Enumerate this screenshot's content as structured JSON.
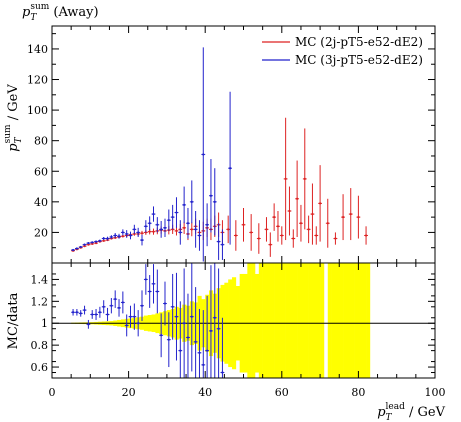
{
  "chart_data": [
    {
      "type": "scatter",
      "title": "p_T^sum (Away)",
      "title_parts": {
        "main": "p",
        "sub": "T",
        "sup": "sum",
        "tail": " (Away)"
      },
      "ylabel_parts": {
        "main": "p",
        "sub": "T",
        "sup": "sum",
        "tail": " / GeV"
      },
      "xlim": [
        0,
        100
      ],
      "ylim": [
        0,
        155
      ],
      "x_ticks": [
        0,
        20,
        40,
        60,
        80,
        100
      ],
      "y_ticks": [
        20,
        40,
        60,
        80,
        100,
        120,
        140
      ],
      "y_tick_labels": [
        "20",
        "40",
        "60",
        "80",
        "100",
        "120",
        "140"
      ],
      "legend_position": "top-right",
      "colors": {
        "red": "#dd2222",
        "blue": "#2222cc"
      },
      "series": [
        {
          "name": "MC (2j-pT5-e52-dE2)",
          "color": "#dd2222",
          "x": [
            5.5,
            6.5,
            7.5,
            8.5,
            9.5,
            10.5,
            11.5,
            12.5,
            13.5,
            14.5,
            15.5,
            16.5,
            17.5,
            18.5,
            19.5,
            20.5,
            21.5,
            22.5,
            23.5,
            24.5,
            25.5,
            26.5,
            27.5,
            28.5,
            29.5,
            30.5,
            31.5,
            32.5,
            33.5,
            34.5,
            35.5,
            36.5,
            37.5,
            38.5,
            39.5,
            40.5,
            41.5,
            42.5,
            43.5,
            44.5,
            46,
            48,
            50,
            52,
            54,
            56,
            57,
            58,
            59,
            60,
            61,
            62,
            63,
            64,
            65,
            66,
            67,
            68,
            69,
            70,
            72,
            74,
            76,
            78,
            80,
            82
          ],
          "y": [
            8,
            9,
            10,
            11,
            12,
            12.5,
            13,
            14,
            14.5,
            15,
            16,
            16.5,
            17,
            17.5,
            18,
            18.5,
            19,
            19,
            19.5,
            20,
            20.5,
            20.5,
            21,
            21.5,
            21,
            21.5,
            22,
            21,
            22,
            23,
            19,
            22,
            24,
            20,
            21,
            23,
            22,
            24,
            25,
            20,
            22,
            18,
            25,
            20,
            16,
            22,
            12,
            30,
            24,
            18,
            55,
            34,
            16,
            42,
            26,
            55,
            22,
            32,
            18,
            39,
            26,
            16,
            30,
            32,
            30,
            18
          ],
          "err": [
            0.3,
            0.3,
            0.3,
            0.4,
            0.4,
            0.4,
            0.5,
            0.5,
            0.5,
            0.6,
            0.6,
            0.7,
            0.8,
            0.8,
            1,
            1,
            1.2,
            1.3,
            1.5,
            1.6,
            1.8,
            2,
            2.2,
            2.4,
            2.5,
            2.8,
            3,
            3,
            3.5,
            4,
            4,
            4.5,
            5,
            5,
            6,
            6,
            7,
            7,
            8,
            8,
            9,
            10,
            11,
            12,
            10,
            8,
            8,
            9,
            10,
            6,
            40,
            16,
            6,
            25,
            12,
            33,
            9,
            20,
            6,
            25,
            16,
            4,
            15,
            17,
            14,
            6
          ]
        },
        {
          "name": "MC (3j-pT5-e52-dE2)",
          "color": "#2222cc",
          "x": [
            5.5,
            6.5,
            7.5,
            8.5,
            9.5,
            10.5,
            11.5,
            12.5,
            13.5,
            14.5,
            15.5,
            16.5,
            17.5,
            18.5,
            19.5,
            20.5,
            21.5,
            22.5,
            23.5,
            24.5,
            25.5,
            26.5,
            27.5,
            28.5,
            29.5,
            30.5,
            31.5,
            32.5,
            33.5,
            34.5,
            35.5,
            36.5,
            37.5,
            38.5,
            39.5,
            40.5,
            41.5,
            42.5,
            43.5,
            44.5,
            46.5
          ],
          "y": [
            8.5,
            9.5,
            10.5,
            12,
            13,
            13.5,
            14,
            14.5,
            16,
            16,
            17,
            18,
            17.5,
            20,
            19,
            18,
            22,
            20,
            15,
            24,
            26,
            32,
            25,
            22,
            23,
            28,
            30,
            33,
            20,
            38,
            26,
            40,
            22,
            18,
            71,
            25,
            44,
            40,
            14,
            12,
            62
          ],
          "err": [
            0.5,
            0.5,
            0.5,
            0.6,
            0.6,
            0.6,
            0.7,
            0.8,
            1,
            1.2,
            1.2,
            1.6,
            1.6,
            2,
            2.5,
            2.5,
            3,
            3,
            3.5,
            4,
            4.5,
            5,
            5,
            5.5,
            6,
            7,
            8,
            10,
            8,
            12,
            10,
            14,
            12,
            10,
            70,
            14,
            24,
            22,
            12,
            10,
            50
          ]
        }
      ]
    },
    {
      "type": "scatter",
      "ylabel": "MC/data",
      "xlabel_parts": {
        "main": "p",
        "sub": "T",
        "sup": "lead",
        "tail": " / GeV"
      },
      "xlim": [
        0,
        100
      ],
      "ylim": [
        0.5,
        1.55
      ],
      "x_ticks": [
        0,
        20,
        40,
        60,
        80,
        100
      ],
      "x_tick_labels": [
        "0",
        "20",
        "40",
        "60",
        "80",
        "100"
      ],
      "y_ticks": [
        0.6,
        0.8,
        1.0,
        1.2,
        1.4
      ],
      "y_tick_labels": [
        "0.6",
        "0.8",
        "1",
        "1.2",
        "1.4"
      ],
      "reference_line": 1.0,
      "band_color": "#ffff00",
      "band": {
        "x": [
          5.5,
          6.5,
          7.5,
          8.5,
          9.5,
          10.5,
          11.5,
          12.5,
          13.5,
          14.5,
          15.5,
          16.5,
          17.5,
          18.5,
          19.5,
          20.5,
          21.5,
          22.5,
          23.5,
          24.5,
          25.5,
          26.5,
          27.5,
          28.5,
          29.5,
          30.5,
          31.5,
          32.5,
          33.5,
          34.5,
          35.5,
          36.5,
          37.5,
          38.5,
          39.5,
          40.5,
          41.5,
          42.5,
          43.5,
          44.5,
          45.5,
          46.5,
          47.5,
          48.5,
          49.5,
          50.5,
          51.5,
          52.5,
          53.5,
          54.5,
          55.5,
          56.5,
          57.5,
          58.5,
          59.5,
          60.5,
          61.5,
          62.5,
          63.5,
          64.5,
          65.5,
          66.5,
          67.5,
          68.5,
          69.5,
          70.5,
          71.5,
          72.5,
          73.5,
          74.5,
          75.5,
          76.5,
          77.5,
          78.5,
          79.5,
          80.5,
          81.5,
          82.5
        ],
        "half_width": [
          0.005,
          0.006,
          0.007,
          0.008,
          0.009,
          0.01,
          0.012,
          0.014,
          0.016,
          0.018,
          0.02,
          0.025,
          0.03,
          0.035,
          0.04,
          0.045,
          0.05,
          0.055,
          0.06,
          0.07,
          0.075,
          0.08,
          0.09,
          0.1,
          0.11,
          0.12,
          0.13,
          0.15,
          0.14,
          0.17,
          0.16,
          0.2,
          0.19,
          0.25,
          0.22,
          0.26,
          0.3,
          0.27,
          0.32,
          0.35,
          0.37,
          0.4,
          0.42,
          0.34,
          0.45,
          0.45,
          0.6,
          0.6,
          0.45,
          0.6,
          0.6,
          0.6,
          0.6,
          0.6,
          0.6,
          0.6,
          0.6,
          0.6,
          0.6,
          0.6,
          0.6,
          0.6,
          0.6,
          0.6,
          0.6,
          0.6,
          0.6,
          0.6,
          0.6,
          0.6,
          0.6,
          0.6,
          0.6,
          0.6,
          0.6,
          0.6,
          0.6,
          0.6
        ],
        "gaps": [
          [
            67.5,
            68.5
          ],
          [
            70.5,
            72.5
          ],
          [
            74.5,
            75.5
          ],
          [
            76.5,
            77.5
          ],
          [
            79.5,
            80.5
          ]
        ]
      },
      "series": [
        {
          "name": "MC (3j-pT5-e52-dE2) / data",
          "color": "#2222cc",
          "x": [
            5.5,
            6.5,
            7.5,
            8.5,
            9.5,
            10.5,
            11.5,
            12.5,
            13.5,
            14.5,
            15.5,
            16.5,
            17.5,
            18.5,
            19.5,
            20.5,
            21.5,
            22.5,
            23.5,
            24.5,
            25.5,
            26.5,
            27.5,
            28.5,
            29.5,
            30.5,
            31.5,
            32.5,
            33.5,
            34.5,
            35.5,
            36.5,
            37.5,
            38.5,
            39.5,
            40.5,
            41.5,
            42.5,
            43.5,
            44.5
          ],
          "y": [
            1.1,
            1.1,
            1.09,
            1.12,
            0.99,
            1.08,
            1.08,
            1.1,
            1.15,
            1.08,
            1.16,
            1.22,
            1.14,
            1.19,
            0.98,
            1.06,
            1.06,
            1.0,
            1.16,
            1.4,
            1.29,
            1.36,
            1.29,
            0.89,
            1.18,
            0.85,
            1.15,
            1.06,
            0.75,
            1.0,
            0.87,
            1.06,
            0.83,
            0.73,
            0.62,
            0.75,
            0.93,
            1.05,
            0.95,
            0.55
          ],
          "err": [
            0.03,
            0.03,
            0.03,
            0.04,
            0.04,
            0.04,
            0.05,
            0.05,
            0.06,
            0.06,
            0.07,
            0.08,
            0.08,
            0.1,
            0.1,
            0.1,
            0.12,
            0.12,
            0.14,
            0.14,
            0.15,
            0.18,
            0.2,
            0.2,
            0.2,
            0.25,
            0.3,
            0.4,
            0.45,
            0.5,
            0.4,
            0.5,
            0.5,
            0.4,
            0.5,
            0.5,
            0.6,
            0.6,
            0.55,
            0.5
          ]
        }
      ]
    }
  ]
}
